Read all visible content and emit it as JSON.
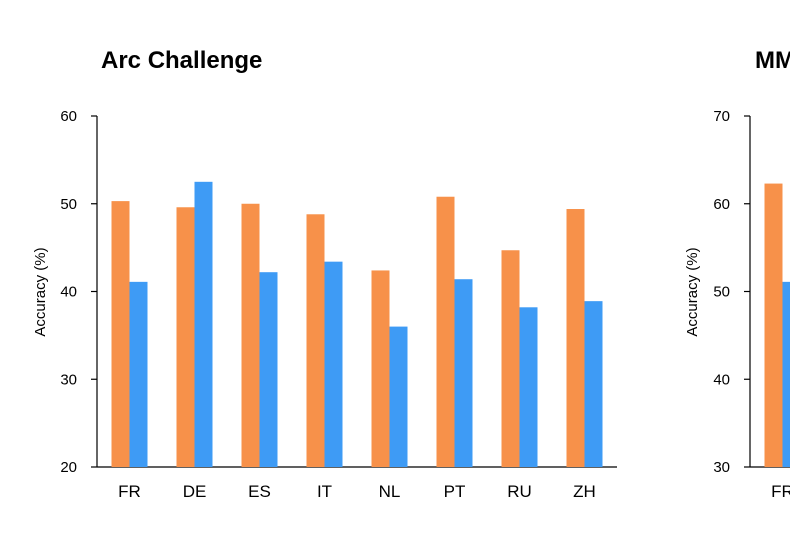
{
  "chart_data": [
    {
      "type": "bar",
      "title": "Arc Challenge",
      "ylabel": "Accuracy (%)",
      "xlabel": "",
      "ylim": [
        20,
        60
      ],
      "yticks": [
        20,
        30,
        40,
        50,
        60
      ],
      "categories": [
        "FR",
        "DE",
        "ES",
        "IT",
        "NL",
        "PT",
        "RU",
        "ZH"
      ],
      "series": [
        {
          "color": "#F7914A",
          "values": [
            50.3,
            49.6,
            50.0,
            48.8,
            42.4,
            50.8,
            44.7,
            49.4
          ]
        },
        {
          "color": "#3E9BF5",
          "values": [
            41.1,
            52.5,
            42.2,
            43.4,
            36.0,
            41.4,
            38.2,
            38.9
          ]
        }
      ]
    },
    {
      "type": "bar",
      "title": "MM",
      "ylabel": "Accuracy (%)",
      "xlabel": "",
      "ylim": [
        30,
        70
      ],
      "yticks": [
        30,
        40,
        50,
        60,
        70
      ],
      "categories": [
        "FR"
      ],
      "series": [
        {
          "color": "#F7914A",
          "values": [
            62.3
          ]
        },
        {
          "color": "#3E9BF5",
          "values": [
            51.1
          ]
        }
      ]
    }
  ]
}
